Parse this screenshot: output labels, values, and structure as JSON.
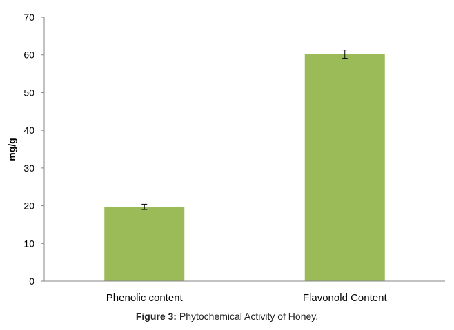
{
  "chart_data": {
    "type": "bar",
    "categories": [
      "Phenolic content",
      "Flavonold Content"
    ],
    "values": [
      19.7,
      60.2
    ],
    "errors": [
      0.7,
      1.1
    ],
    "title": "",
    "xlabel": "",
    "ylabel": "mg/g",
    "ylim": [
      0,
      70
    ],
    "yticks": [
      0,
      10,
      20,
      30,
      40,
      50,
      60,
      70
    ],
    "grid": false,
    "legend": "none",
    "bar_color": "#9BBB59",
    "axis_color": "#868686",
    "error_color": "#000000"
  },
  "caption": {
    "figure_number": "Figure 3:",
    "text": "Phytochemical Activity of Honey."
  }
}
